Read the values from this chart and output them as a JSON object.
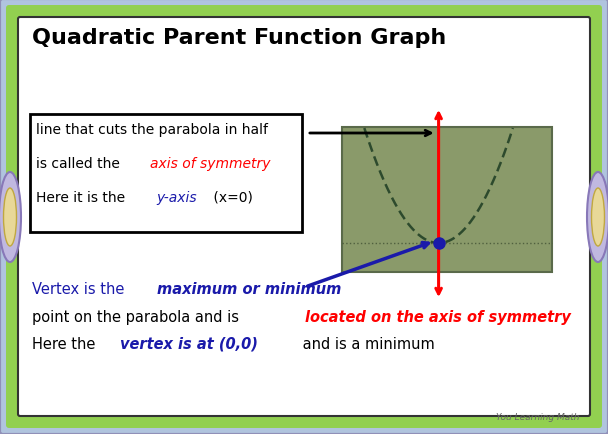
{
  "title": "Quadratic Parent Function Graph",
  "title_fontsize": 16,
  "bg_outer": "#b0c4de",
  "bg_green_border": "#92d050",
  "bg_card": "#ffffff",
  "text_black": "#000000",
  "text_red": "#ff0000",
  "text_blue": "#1a1aaa",
  "text_darkblue": "#00008b",
  "watermark": "You Learning Math",
  "box_text_line1": "line that cuts the parabola in half",
  "box_text_line2_black": "is called the ",
  "box_text_line2_red": "axis of symmetry",
  "box_text_line3_black": "Here it is the ",
  "box_text_line3_blue": "y-axis",
  "box_text_line3_end": " (x=0)",
  "bottom_line1_black1": "Vertex is the ",
  "bottom_line1_blue": "maximum or minimum",
  "bottom_line2_black": "point on the parabola and is ",
  "bottom_line2_red": "located on the axis of symmetry",
  "bottom_line3_black": "Here the ",
  "bottom_line3_blue": "vertex is at (0,0)",
  "bottom_line3_end": " and is a minimum",
  "graph_bg": "#8a9a6a",
  "parabola_color": "#2d4a2d",
  "axis_red": "#ff0000",
  "vertex_blue": "#1a1aaa",
  "xaxis_line": "#4a5a3a",
  "outer_border_color": "#9090b8",
  "green_border_color": "#92d050",
  "card_border_color": "#333333"
}
